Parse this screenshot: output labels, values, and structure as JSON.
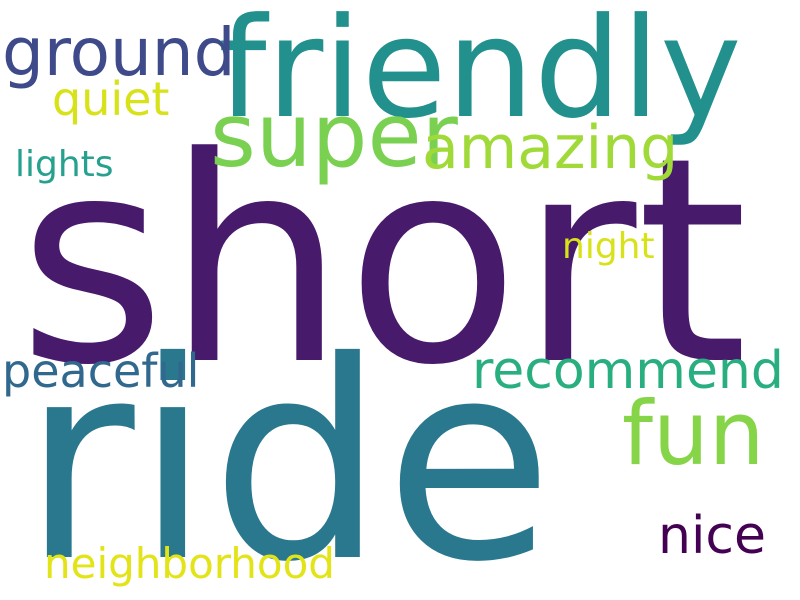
{
  "words": {
    "short": {
      "text": "short",
      "color": "#481a6c"
    },
    "ride": {
      "text": "ride",
      "color": "#2a788e"
    },
    "friendly": {
      "text": "friendly",
      "color": "#22908d"
    },
    "super": {
      "text": "super",
      "color": "#7ad151"
    },
    "ground": {
      "text": "ground",
      "color": "#3e4a89"
    },
    "amazing": {
      "text": "amazing",
      "color": "#a0da39"
    },
    "quiet": {
      "text": "quiet",
      "color": "#d8e219"
    },
    "lights": {
      "text": "lights",
      "color": "#25a18e"
    },
    "night": {
      "text": "night",
      "color": "#d8e219"
    },
    "peaceful": {
      "text": "peaceful",
      "color": "#31688e"
    },
    "recommend": {
      "text": "recommend",
      "color": "#29af7f"
    },
    "fun": {
      "text": "fun",
      "color": "#86d549"
    },
    "nice": {
      "text": "nice",
      "color": "#440154"
    },
    "neighborhood": {
      "text": "neighborhood",
      "color": "#e2e418"
    }
  }
}
